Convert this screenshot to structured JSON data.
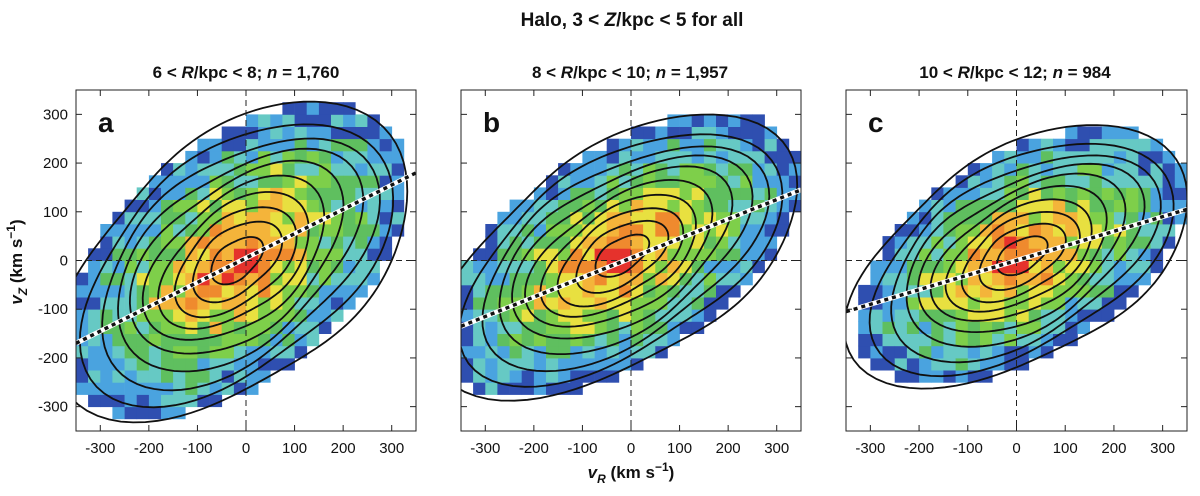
{
  "figure": {
    "suptitle": {
      "pre": "Halo, 3 < ",
      "var": "Z",
      "post": "/kpc < 5 for all"
    },
    "xlabel": {
      "var": "v",
      "sub": "R",
      "unit": " (km s",
      "exp": "−1",
      "close": ")"
    },
    "ylabel": {
      "var": "v",
      "sub": "Z",
      "unit": " (km s",
      "exp": "−1",
      "close": ")"
    }
  },
  "colors": {
    "density_scale": [
      "#2f4fb0",
      "#4aa3df",
      "#66c9c4",
      "#5fbf5f",
      "#7ecf4a",
      "#e8e040",
      "#f4b43a",
      "#ef8a2e",
      "#e5322c"
    ],
    "contour": "#111111",
    "fit_line": "#111111",
    "fit_line_halo": "#ffffff"
  },
  "chart_data": [
    {
      "type": "heatmap",
      "letter": "a",
      "title": {
        "pre": "6 < ",
        "var": "R",
        "post": "/kpc < 8; ",
        "nvar": "n",
        "npost": " = 1,760"
      },
      "xlim": [
        -350,
        350
      ],
      "ylim": [
        -350,
        350
      ],
      "xticks": [
        -300,
        -200,
        -100,
        0,
        100,
        200,
        300
      ],
      "yticks": [
        -300,
        -200,
        -100,
        0,
        100,
        200,
        300
      ],
      "bin_size_kms": 25,
      "overlay": "density contours",
      "density_peak": {
        "vR": -20,
        "vZ": 0
      },
      "fit_line": {
        "slope": 0.5,
        "intercept": 5,
        "x_range": [
          -350,
          350
        ]
      },
      "reference_lines": {
        "x": 0,
        "y": 0
      }
    },
    {
      "type": "heatmap",
      "letter": "b",
      "title": {
        "pre": "8 < ",
        "var": "R",
        "post": "/kpc < 10; ",
        "nvar": "n",
        "npost": " = 1,957"
      },
      "xlim": [
        -350,
        350
      ],
      "ylim": [
        -350,
        350
      ],
      "xticks": [
        -300,
        -200,
        -100,
        0,
        100,
        200,
        300
      ],
      "yticks": [
        -300,
        -200,
        -100,
        0,
        100,
        200,
        300
      ],
      "bin_size_kms": 25,
      "overlay": "density contours",
      "density_peak": {
        "vR": -20,
        "vZ": 10
      },
      "fit_line": {
        "slope": 0.4,
        "intercept": 5,
        "x_range": [
          -350,
          350
        ]
      },
      "reference_lines": {
        "x": 0,
        "y": 0
      }
    },
    {
      "type": "heatmap",
      "letter": "c",
      "title": {
        "pre": "10 < ",
        "var": "R",
        "post": "/kpc < 12; ",
        "nvar": "n",
        "npost": " = 984"
      },
      "xlim": [
        -350,
        350
      ],
      "ylim": [
        -350,
        350
      ],
      "xticks": [
        -300,
        -200,
        -100,
        0,
        100,
        200,
        300
      ],
      "yticks": [
        -300,
        -200,
        -100,
        0,
        100,
        200,
        300
      ],
      "bin_size_kms": 25,
      "overlay": "density contours",
      "density_peak": {
        "vR": 10,
        "vZ": 10
      },
      "fit_line": {
        "slope": 0.3,
        "intercept": 0,
        "x_range": [
          -350,
          350
        ]
      },
      "reference_lines": {
        "x": 0,
        "y": 0
      }
    }
  ]
}
